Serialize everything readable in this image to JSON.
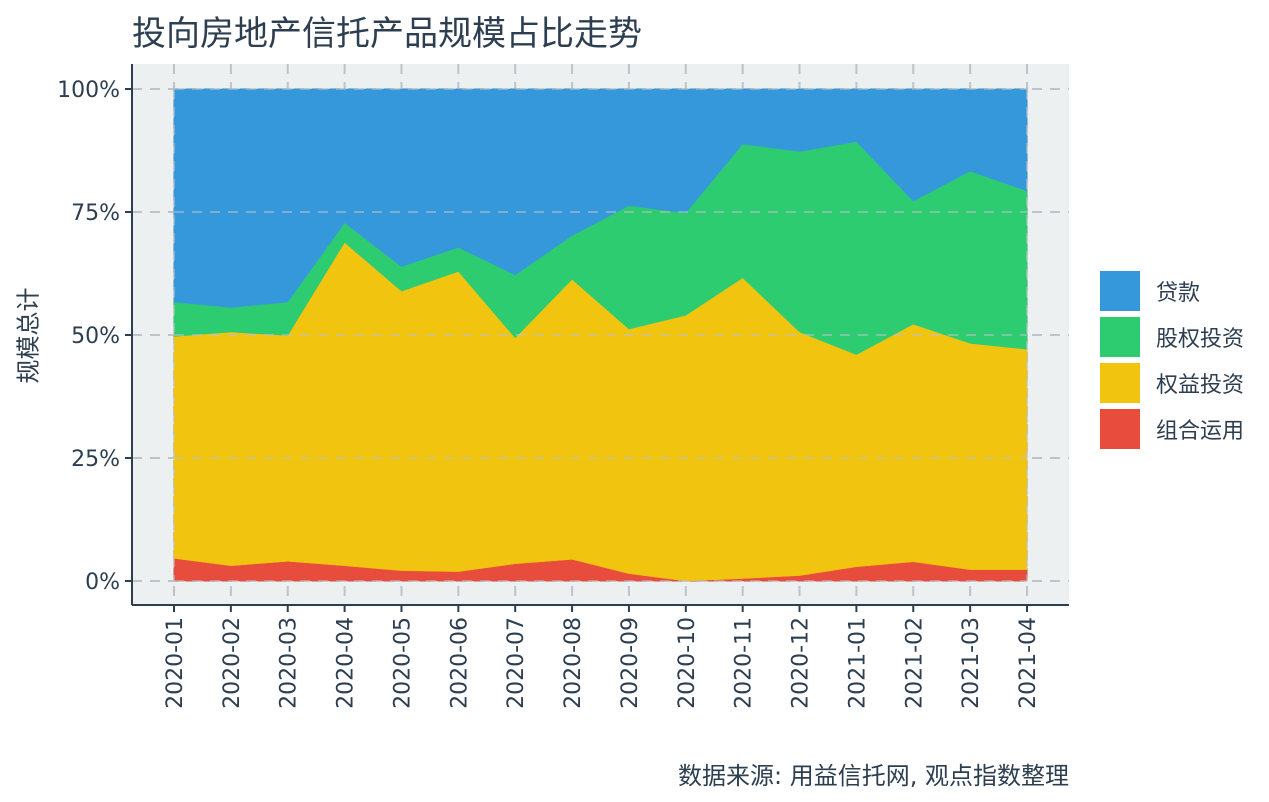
{
  "title": "投向房地产信托产品规模占比走势",
  "caption": "数据来源: 用益信托网, 观点指数整理",
  "chart_data": {
    "type": "area",
    "stacked": true,
    "normalized": true,
    "title": "投向房地产信托产品规模占比走势",
    "xlabel": "",
    "ylabel": "规模总计",
    "ylim": [
      0,
      1
    ],
    "yticks": [
      "0%",
      "25%",
      "50%",
      "75%",
      "100%"
    ],
    "ytick_values": [
      0,
      0.25,
      0.5,
      0.75,
      1.0
    ],
    "grid": true,
    "legend_position": "right",
    "x": [
      "2020-01",
      "2020-02",
      "2020-03",
      "2020-04",
      "2020-05",
      "2020-06",
      "2020-07",
      "2020-08",
      "2020-09",
      "2020-10",
      "2020-11",
      "2020-12",
      "2021-01",
      "2021-02",
      "2021-03",
      "2021-04"
    ],
    "series": [
      {
        "name": "组合运用",
        "color": "#e74c3c",
        "values": [
          0.046,
          0.031,
          0.04,
          0.031,
          0.021,
          0.019,
          0.035,
          0.044,
          0.015,
          0.0,
          0.005,
          0.011,
          0.029,
          0.039,
          0.023,
          0.023
        ]
      },
      {
        "name": "权益投资",
        "color": "#f1c40f",
        "values": [
          0.451,
          0.475,
          0.459,
          0.657,
          0.568,
          0.61,
          0.459,
          0.569,
          0.497,
          0.54,
          0.611,
          0.495,
          0.431,
          0.483,
          0.46,
          0.448
        ]
      },
      {
        "name": "股权投资",
        "color": "#2ecc71",
        "values": [
          0.07,
          0.05,
          0.068,
          0.04,
          0.05,
          0.049,
          0.128,
          0.089,
          0.251,
          0.208,
          0.272,
          0.367,
          0.433,
          0.25,
          0.35,
          0.322
        ]
      },
      {
        "name": "贷款",
        "color": "#3498db",
        "values": [
          0.433,
          0.444,
          0.433,
          0.272,
          0.361,
          0.322,
          0.378,
          0.298,
          0.237,
          0.252,
          0.112,
          0.127,
          0.107,
          0.228,
          0.167,
          0.207
        ]
      }
    ],
    "legend_order": [
      "贷款",
      "股权投资",
      "权益投资",
      "组合运用"
    ]
  },
  "legend": [
    {
      "label": "贷款",
      "color": "#3498db"
    },
    {
      "label": "股权投资",
      "color": "#2ecc71"
    },
    {
      "label": "权益投资",
      "color": "#f1c40f"
    },
    {
      "label": "组合运用",
      "color": "#e74c3c"
    }
  ],
  "colors": {
    "panel_bg": "#ecf0f1",
    "grid": "#bdc3c7",
    "axis": "#2c3e50",
    "text": "#2c3e50"
  }
}
